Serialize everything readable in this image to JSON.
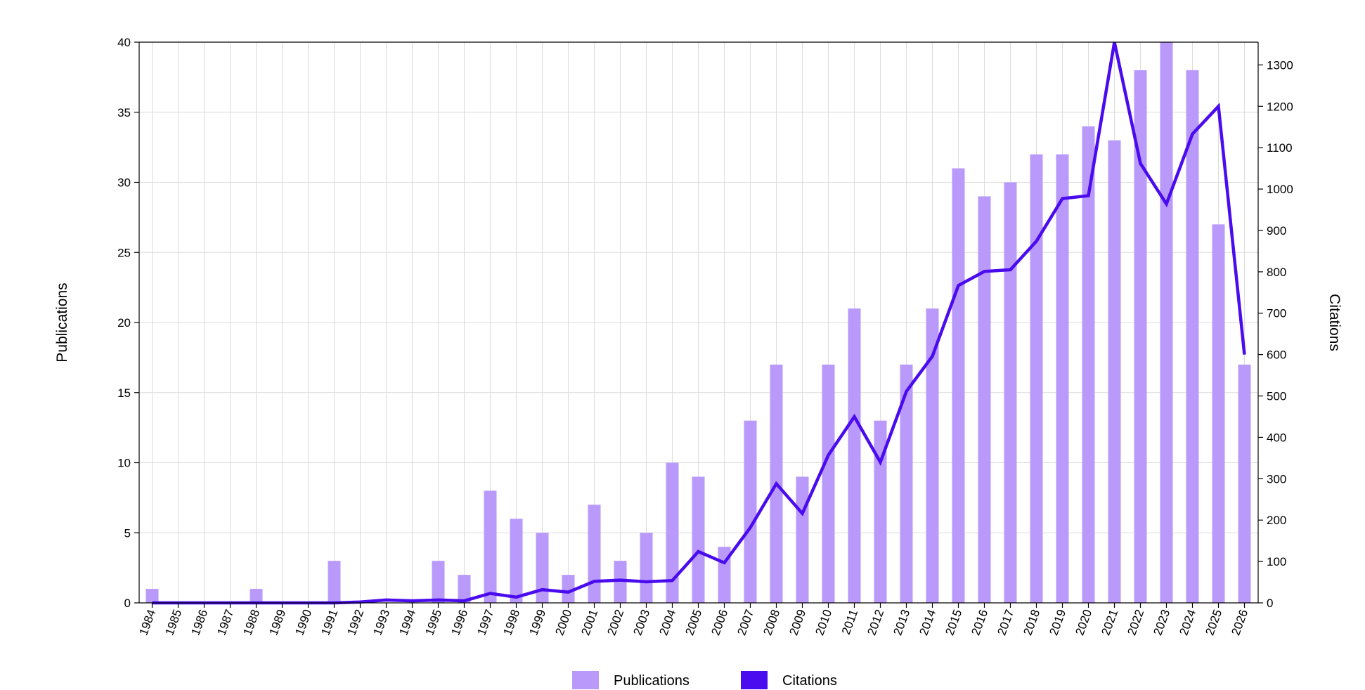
{
  "chart_data": {
    "type": "bar",
    "categories": [
      "1984",
      "1985",
      "1986",
      "1987",
      "1988",
      "1989",
      "1990",
      "1991",
      "1992",
      "1993",
      "1994",
      "1995",
      "1996",
      "1997",
      "1998",
      "1999",
      "2000",
      "2001",
      "2002",
      "2003",
      "2004",
      "2005",
      "2006",
      "2007",
      "2008",
      "2009",
      "2010",
      "2011",
      "2012",
      "2013",
      "2014",
      "2015",
      "2016",
      "2017",
      "2018",
      "2019",
      "2020",
      "2021",
      "2022",
      "2023",
      "2024",
      "2025",
      "2026"
    ],
    "series": [
      {
        "name": "Publications",
        "type": "bar",
        "axis": "left",
        "color": "#b99afb",
        "values": [
          1,
          0,
          0,
          0,
          1,
          0,
          0,
          3,
          0,
          0,
          0,
          3,
          2,
          8,
          6,
          5,
          2,
          7,
          3,
          5,
          10,
          9,
          4,
          13,
          17,
          9,
          17,
          21,
          13,
          17,
          21,
          31,
          29,
          30,
          32,
          32,
          34,
          33,
          38,
          40,
          38,
          27,
          17
        ]
      },
      {
        "name": "Citations",
        "type": "line",
        "axis": "right",
        "color": "#4a0bee",
        "values": [
          0,
          0,
          0,
          0,
          0,
          0,
          0,
          0,
          2,
          7,
          5,
          7,
          5,
          23,
          14,
          32,
          26,
          52,
          55,
          51,
          54,
          124,
          97,
          182,
          288,
          216,
          357,
          450,
          340,
          511,
          596,
          767,
          801,
          805,
          874,
          977,
          984,
          1355,
          1062,
          964,
          1133,
          1200,
          600
        ]
      }
    ],
    "title": "",
    "xlabel": "",
    "ylabel": "Publications",
    "y2label": "Citations",
    "ylim": [
      0,
      40
    ],
    "y2lim": [
      0,
      1355
    ],
    "yticks": [
      0,
      5,
      10,
      15,
      20,
      25,
      30,
      35,
      40
    ],
    "y2ticks": [
      0,
      100,
      200,
      300,
      400,
      500,
      600,
      700,
      800,
      900,
      1000,
      1100,
      1200,
      1300
    ],
    "grid": true,
    "legend": "bottom-center"
  }
}
